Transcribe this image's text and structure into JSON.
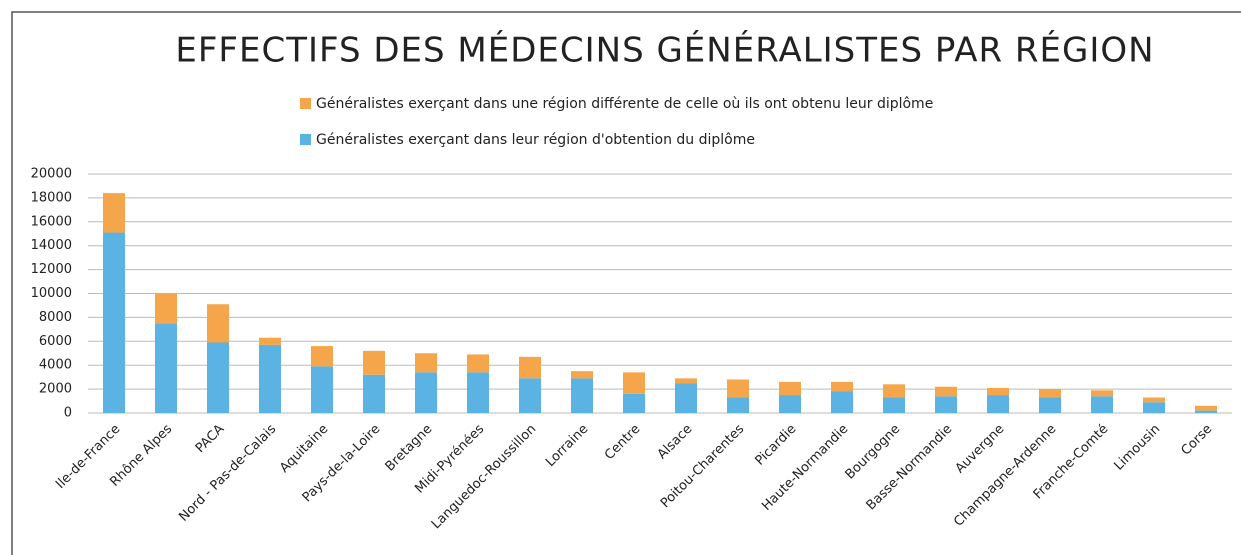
{
  "chart_data": {
    "type": "stacked_bar",
    "title": "EFFECTIFS DES MÉDECINS GÉNÉRALISTES PAR RÉGION",
    "categories": [
      "Ile-de-France",
      "Rhône Alpes",
      "PACA",
      "Nord - Pas-de-Calais",
      "Aquitaine",
      "Pays-de-la-Loire",
      "Bretagne",
      "Midi-Pyrénées",
      "Languedoc-Roussillon",
      "Lorraine",
      "Centre",
      "Alsace",
      "Poitou-Charentes",
      "Picardie",
      "Haute-Normandie",
      "Bourgogne",
      "Basse-Normandie",
      "Auvergne",
      "Champagne-Ardenne",
      "Franche-Comté",
      "Limousin",
      "Corse"
    ],
    "series": [
      {
        "name": "Généralistes exerçant dans leur région d'obtention du diplôme",
        "color": "#5bb3e3",
        "values": [
          15100,
          7500,
          5900,
          5700,
          3900,
          3200,
          3400,
          3400,
          2900,
          2900,
          1600,
          2500,
          1300,
          1500,
          1800,
          1300,
          1400,
          1500,
          1300,
          1400,
          900,
          200
        ]
      },
      {
        "name": "Généralistes exerçant dans une région différente de celle où ils ont obtenu leur diplôme",
        "color": "#f5a54a",
        "values": [
          3300,
          2500,
          3200,
          600,
          1700,
          2000,
          1600,
          1500,
          1800,
          600,
          1800,
          400,
          1500,
          1100,
          800,
          1100,
          800,
          600,
          700,
          500,
          400,
          400
        ]
      }
    ],
    "ylim": [
      0,
      20000
    ],
    "yticks": [
      0,
      2000,
      4000,
      6000,
      8000,
      10000,
      12000,
      14000,
      16000,
      18000,
      20000
    ],
    "grid": true
  }
}
